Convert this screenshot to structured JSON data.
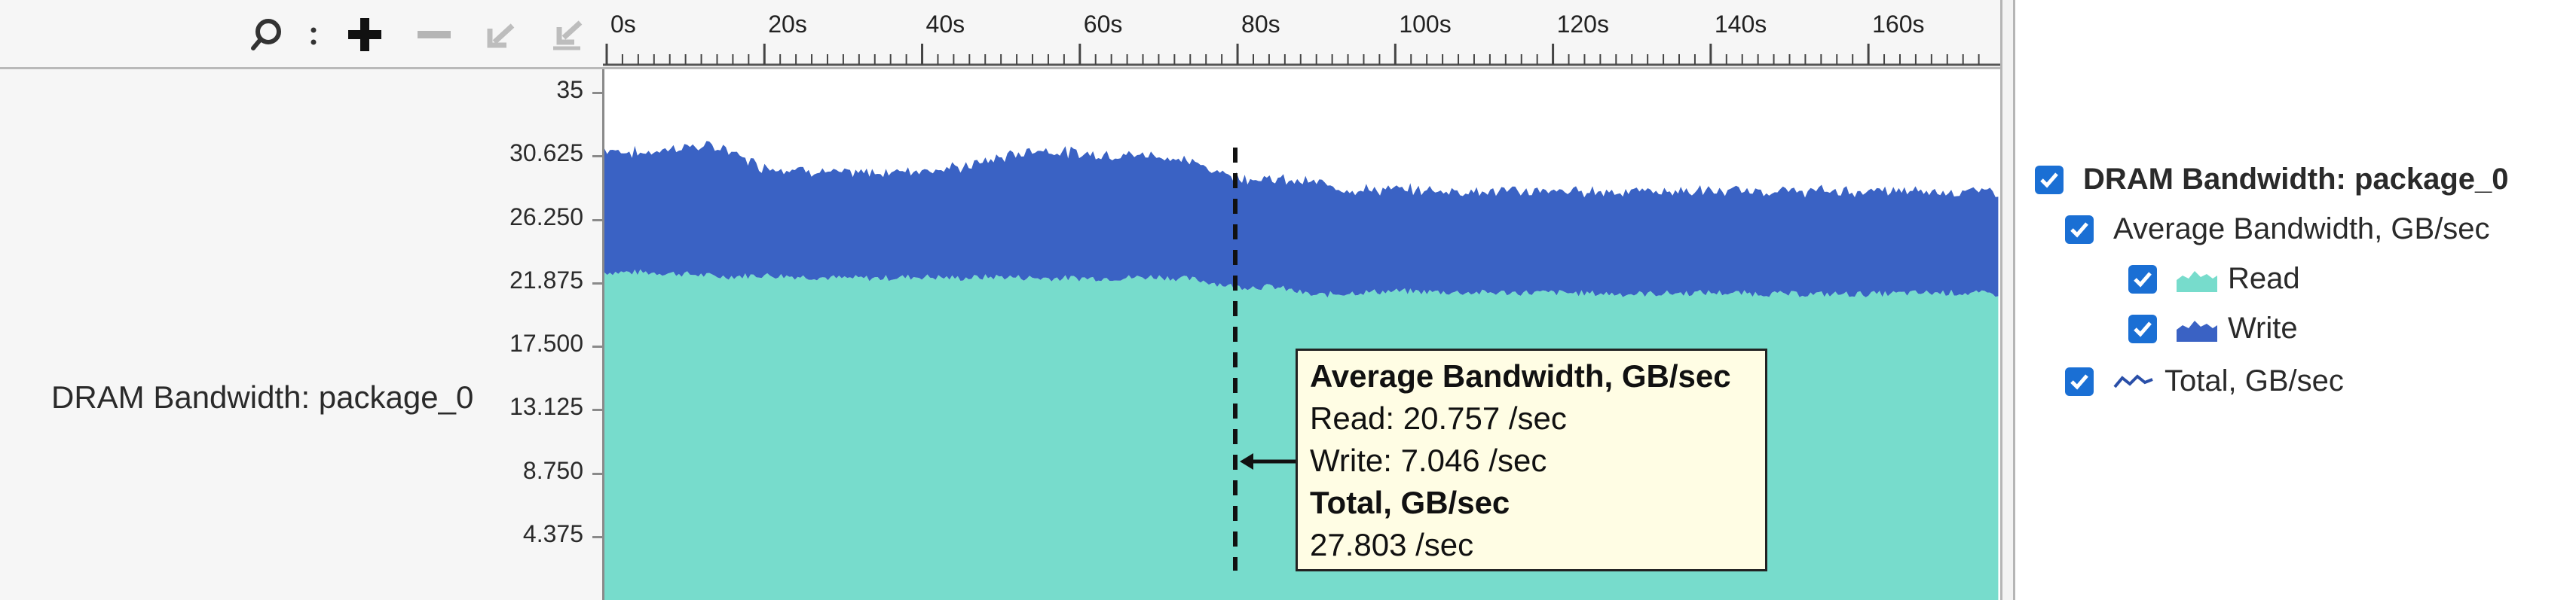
{
  "toolbar": {
    "icons": [
      "search-icon",
      "zoom-in-icon",
      "zoom-out-icon",
      "undo-zoom-icon",
      "reset-zoom-icon"
    ]
  },
  "timeline": {
    "ticks": [
      "0s",
      "20s",
      "40s",
      "60s",
      "80s",
      "100s",
      "120s",
      "140s",
      "160s"
    ]
  },
  "row": {
    "title": "DRAM Bandwidth: package_0",
    "y_ticks": [
      "35",
      "30.625",
      "26.250",
      "21.875",
      "17.500",
      "13.125",
      "8.750",
      "4.375"
    ]
  },
  "chart_data": {
    "type": "area",
    "stacked": true,
    "x_unit": "s",
    "xlim": [
      0,
      177
    ],
    "ylim": [
      0,
      35
    ],
    "x": [
      0,
      5,
      10,
      15,
      20,
      25,
      30,
      35,
      40,
      45,
      50,
      55,
      60,
      65,
      70,
      75,
      80,
      85,
      90,
      95,
      100,
      110,
      120,
      130,
      140,
      150,
      160,
      170,
      177
    ],
    "series": [
      {
        "name": "Read",
        "color": "#77dccc",
        "values": [
          22.6,
          22.6,
          22.5,
          22.3,
          22.4,
          22.3,
          22.2,
          22.2,
          22.3,
          22.2,
          22.3,
          22.2,
          22.2,
          22.2,
          22.3,
          22.1,
          21.6,
          21.6,
          21.0,
          21.2,
          21.3,
          21.2,
          21.2,
          21.1,
          21.2,
          21.1,
          21.1,
          21.2,
          21.1
        ]
      },
      {
        "name": "Write",
        "color": "#3a62c4",
        "values": [
          8.5,
          8.2,
          8.8,
          8.9,
          7.5,
          7.4,
          7.2,
          7.3,
          7.4,
          7.6,
          8.2,
          8.9,
          8.6,
          8.5,
          8.4,
          8.0,
          7.6,
          7.4,
          7.8,
          7.1,
          7.0,
          7.0,
          7.0,
          7.1,
          7.0,
          7.1,
          7.1,
          7.0,
          7.1
        ]
      }
    ],
    "cursor_x": 80
  },
  "tooltip": {
    "group_title": "Average Bandwidth, GB/sec",
    "read_line": "Read: 20.757 /sec",
    "write_line": "Write: 7.046 /sec",
    "total_title": "Total, GB/sec",
    "total_line": "27.803 /sec"
  },
  "legend": {
    "root": "DRAM Bandwidth: package_0",
    "group": "Average Bandwidth, GB/sec",
    "read": "Read",
    "write": "Write",
    "total": "Total, GB/sec",
    "read_color": "#77dccc",
    "write_color": "#3a62c4"
  }
}
